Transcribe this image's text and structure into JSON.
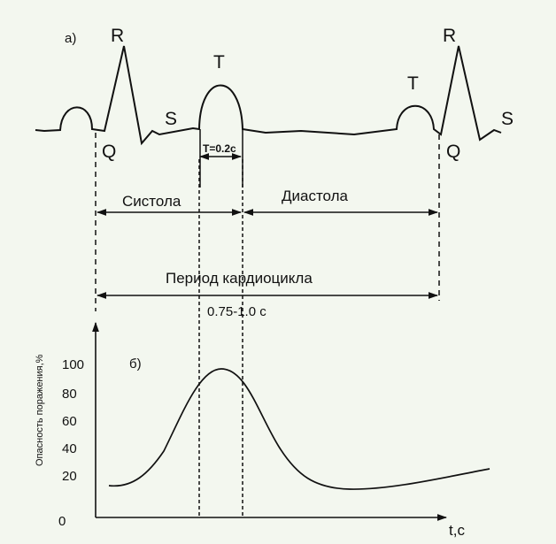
{
  "panel_a": {
    "tag": "а)",
    "waves": {
      "r1": "R",
      "q1": "Q",
      "s1": "S",
      "t1": "T",
      "t2": "T",
      "r2": "R",
      "q2": "Q",
      "s2": "S"
    },
    "t_duration": "T=0.2c",
    "systole": "Систола",
    "diastole": "Диастола",
    "period": "Период кардиоцикла",
    "period_range": "0.75-1.0 с"
  },
  "panel_b": {
    "tag": "б)",
    "ylabel": "Опасность поражения,%",
    "xlabel": "t,c",
    "yticks": [
      "0",
      "20",
      "40",
      "60",
      "80",
      "100"
    ]
  },
  "colors": {
    "ink": "#111111",
    "background": "#f3f7ef"
  }
}
